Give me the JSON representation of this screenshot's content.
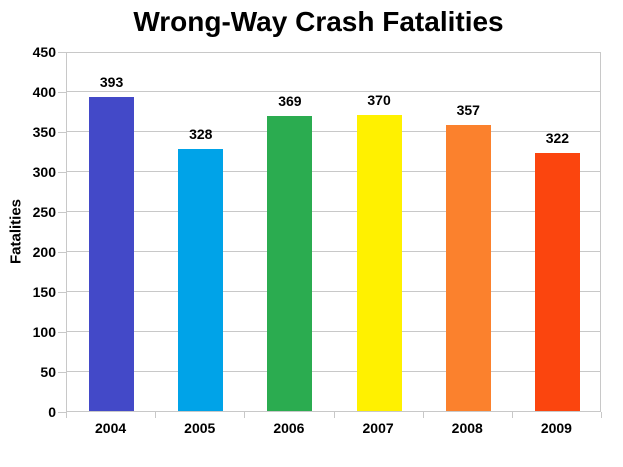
{
  "window": {
    "background_color": "#FFFFFF",
    "text_color": "#000000",
    "grid_color": "#C8C8C8"
  },
  "chart_data": {
    "type": "bar",
    "title": "Wrong-Way Crash Fatalities",
    "xlabel": "",
    "ylabel": "Fatalities",
    "categories": [
      "2004",
      "2005",
      "2006",
      "2007",
      "2008",
      "2009"
    ],
    "values": [
      393,
      328,
      369,
      370,
      357,
      322
    ],
    "bar_colors": [
      "#4349C8",
      "#00A3E8",
      "#2BAC50",
      "#FFF100",
      "#FB812D",
      "#FB450E"
    ],
    "ylim": [
      0,
      450
    ],
    "yticks": [
      0,
      50,
      100,
      150,
      200,
      250,
      300,
      350,
      400,
      450
    ],
    "grid": "horizontal",
    "legend": "none",
    "value_labels_shown": true
  }
}
